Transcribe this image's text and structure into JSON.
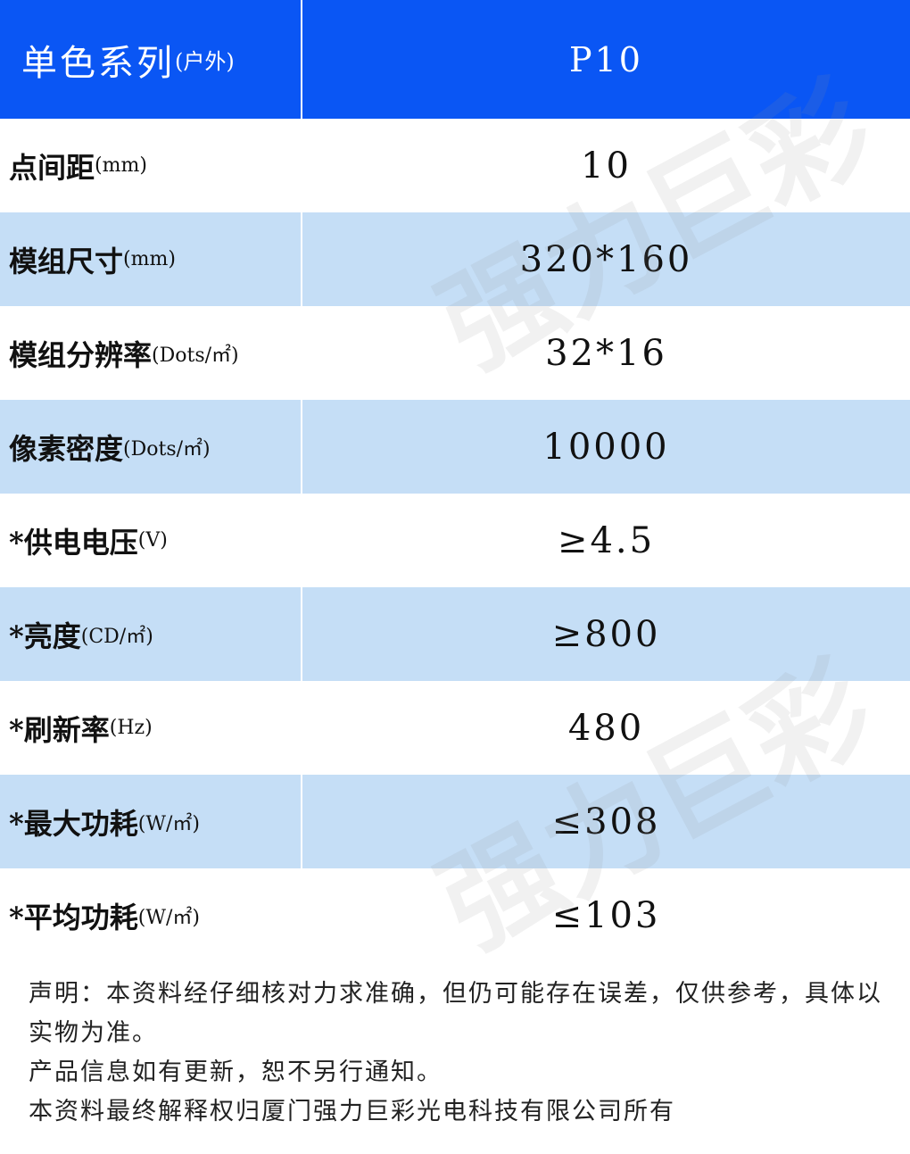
{
  "header": {
    "label": "单色系列",
    "unit": "(户外)",
    "value": "P10"
  },
  "rows": [
    {
      "label": "点间距",
      "unit": "(mm)",
      "value": "10"
    },
    {
      "label": "模组尺寸",
      "unit": "(mm)",
      "value": "320*160"
    },
    {
      "label": "模组分辨率",
      "unit": "(Dots/㎡)",
      "value": "32*16"
    },
    {
      "label": "像素密度",
      "unit": "(Dots/㎡)",
      "value": "10000"
    },
    {
      "label": "*供电电压",
      "unit": "(V)",
      "value": "≥4.5"
    },
    {
      "label": "*亮度",
      "unit": "(CD/㎡)",
      "value": "≥800"
    },
    {
      "label": "*刷新率",
      "unit": "(Hz)",
      "value": "480"
    },
    {
      "label": "*最大功耗",
      "unit": "(W/㎡)",
      "value": "≤308"
    },
    {
      "label": "*平均功耗",
      "unit": "(W/㎡)",
      "value": "≤103"
    }
  ],
  "watermark": "强力巨彩",
  "notes": [
    "声明：本资料经仔细核对力求准确，但仍可能存在误差，仅供参考，具体以实物为准。",
    "产品信息如有更新，恕不另行通知。",
    "本资料最终解释权归厦门强力巨彩光电科技有限公司所有"
  ]
}
